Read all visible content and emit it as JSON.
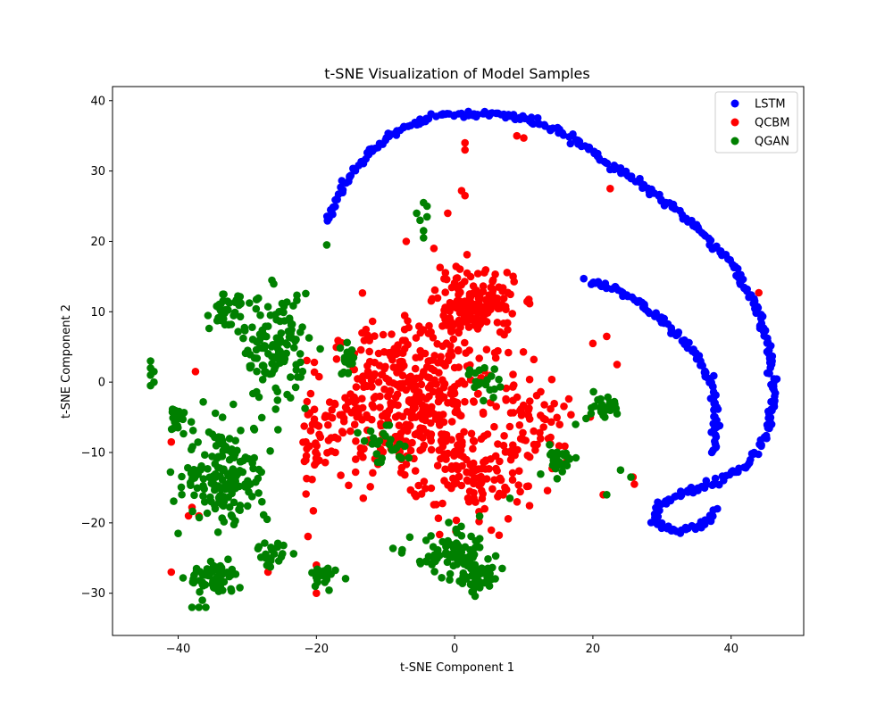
{
  "chart_data": {
    "type": "scatter",
    "title": "t-SNE Visualization of Model Samples",
    "xlabel": "t-SNE Component 1",
    "ylabel": "t-SNE Component 2",
    "xlim": [
      -49.5,
      50.5
    ],
    "ylim": [
      -36,
      42
    ],
    "xticks": [
      -40,
      -20,
      0,
      20,
      40
    ],
    "yticks": [
      -30,
      -20,
      -10,
      0,
      10,
      20,
      30,
      40
    ],
    "xtick_labels": [
      "−40",
      "−20",
      "0",
      "20",
      "40"
    ],
    "ytick_labels": [
      "−30",
      "−20",
      "−10",
      "0",
      "10",
      "20",
      "30",
      "40"
    ],
    "grid": false,
    "legend_position": "top-right",
    "series": [
      {
        "name": "LSTM",
        "color": "#0000ff",
        "shape": "two concentric arcs",
        "outer_arc": [
          [
            -18.5,
            23
          ],
          [
            -16,
            28
          ],
          [
            -12,
            33
          ],
          [
            -8,
            36
          ],
          [
            -3,
            37.8
          ],
          [
            2,
            38.2
          ],
          [
            7,
            38
          ],
          [
            12,
            37
          ],
          [
            18,
            34
          ],
          [
            24,
            30
          ],
          [
            30,
            26
          ],
          [
            35,
            22
          ],
          [
            40,
            17
          ],
          [
            43.5,
            11
          ],
          [
            45.8,
            4
          ],
          [
            46.3,
            -2
          ],
          [
            44.8,
            -8
          ],
          [
            42,
            -12
          ],
          [
            37,
            -14.5
          ],
          [
            33,
            -15.8
          ],
          [
            29.5,
            -17.5
          ],
          [
            29,
            -20
          ],
          [
            32,
            -21.2
          ],
          [
            35.5,
            -20.5
          ],
          [
            38,
            -18
          ]
        ],
        "inner_arc": [
          [
            19,
            14.5
          ],
          [
            23,
            13.5
          ],
          [
            27,
            11
          ],
          [
            31,
            8
          ],
          [
            34.5,
            4.5
          ],
          [
            37,
            0
          ],
          [
            37.8,
            -4
          ],
          [
            37.6,
            -8
          ],
          [
            37.2,
            -10
          ]
        ]
      },
      {
        "name": "QCBM",
        "color": "#ff0000",
        "clusters": [
          {
            "cx": -6,
            "cy": -2,
            "sx": 10,
            "sy": 9,
            "n": 420
          },
          {
            "cx": 3,
            "cy": 11,
            "sx": 5,
            "sy": 4,
            "n": 160
          },
          {
            "cx": 2,
            "cy": -14,
            "sx": 7,
            "sy": 5,
            "n": 120
          },
          {
            "cx": -20,
            "cy": -8,
            "sx": 6,
            "sy": 7,
            "n": 60
          },
          {
            "cx": 12,
            "cy": -6,
            "sx": 6,
            "sy": 6,
            "n": 60
          }
        ],
        "outliers": [
          [
            1.5,
            34
          ],
          [
            1.5,
            33
          ],
          [
            9,
            35
          ],
          [
            10,
            34.7
          ],
          [
            22.5,
            27.5
          ],
          [
            44,
            12.7
          ],
          [
            1.5,
            26.5
          ],
          [
            1,
            27.2
          ],
          [
            -1,
            24
          ],
          [
            -7,
            20
          ],
          [
            -3,
            19
          ],
          [
            20,
            5.5
          ],
          [
            22,
            6.5
          ],
          [
            23.5,
            2.5
          ],
          [
            21.5,
            -16
          ],
          [
            25.8,
            -13.5
          ],
          [
            26,
            -14.5
          ],
          [
            -41,
            -27
          ],
          [
            -41,
            -8.5
          ],
          [
            -37.5,
            1.5
          ],
          [
            -27,
            -27
          ],
          [
            -37,
            -19
          ],
          [
            -38,
            -17.8
          ],
          [
            -20,
            -30
          ],
          [
            -20,
            -26
          ],
          [
            -38.5,
            -19
          ]
        ]
      },
      {
        "name": "QGAN",
        "color": "#008000",
        "clusters": [
          {
            "cx": -33,
            "cy": -13,
            "sx": 5,
            "sy": 6,
            "n": 170
          },
          {
            "cx": -35,
            "cy": -28,
            "sx": 3,
            "sy": 2,
            "n": 60
          },
          {
            "cx": -26,
            "cy": 5,
            "sx": 4,
            "sy": 6,
            "n": 130
          },
          {
            "cx": -33,
            "cy": 10,
            "sx": 2,
            "sy": 2,
            "n": 40
          },
          {
            "cx": 0,
            "cy": -25,
            "sx": 5,
            "sy": 3,
            "n": 90
          },
          {
            "cx": 4,
            "cy": -28,
            "sx": 2,
            "sy": 2,
            "n": 30
          },
          {
            "cx": 15,
            "cy": -11,
            "sx": 2,
            "sy": 2,
            "n": 30
          },
          {
            "cx": -19,
            "cy": -28,
            "sx": 1.5,
            "sy": 1.5,
            "n": 25
          },
          {
            "cx": 21,
            "cy": -3.5,
            "sx": 2,
            "sy": 1.5,
            "n": 25
          },
          {
            "cx": -40,
            "cy": -5,
            "sx": 1.5,
            "sy": 1.5,
            "n": 20
          },
          {
            "cx": -10,
            "cy": -9,
            "sx": 3,
            "sy": 2,
            "n": 25
          },
          {
            "cx": -15,
            "cy": 3,
            "sx": 2,
            "sy": 2,
            "n": 20
          },
          {
            "cx": 4,
            "cy": 0,
            "sx": 2,
            "sy": 2,
            "n": 20
          },
          {
            "cx": -26,
            "cy": -24,
            "sx": 2,
            "sy": 2,
            "n": 20
          }
        ],
        "outliers": [
          [
            -44,
            1
          ],
          [
            -44,
            2
          ],
          [
            -44,
            3
          ],
          [
            -44,
            -0.5
          ],
          [
            -43.5,
            1.5
          ],
          [
            -43.5,
            0
          ],
          [
            -5,
            23
          ],
          [
            -4,
            25
          ],
          [
            -4.5,
            25.5
          ],
          [
            -4.5,
            21.5
          ],
          [
            -4.5,
            20.5
          ],
          [
            -5.5,
            24
          ],
          [
            -4,
            23.5
          ],
          [
            -18.5,
            19.5
          ],
          [
            -36,
            -32
          ],
          [
            -37,
            -32
          ],
          [
            -38,
            -32
          ],
          [
            -36.5,
            -31
          ],
          [
            -40,
            -21.5
          ],
          [
            22,
            -16
          ],
          [
            24,
            -12.5
          ],
          [
            25.5,
            -13.5
          ],
          [
            23.5,
            -4.5
          ],
          [
            8,
            -16.5
          ],
          [
            17.5,
            -6
          ]
        ]
      }
    ]
  }
}
